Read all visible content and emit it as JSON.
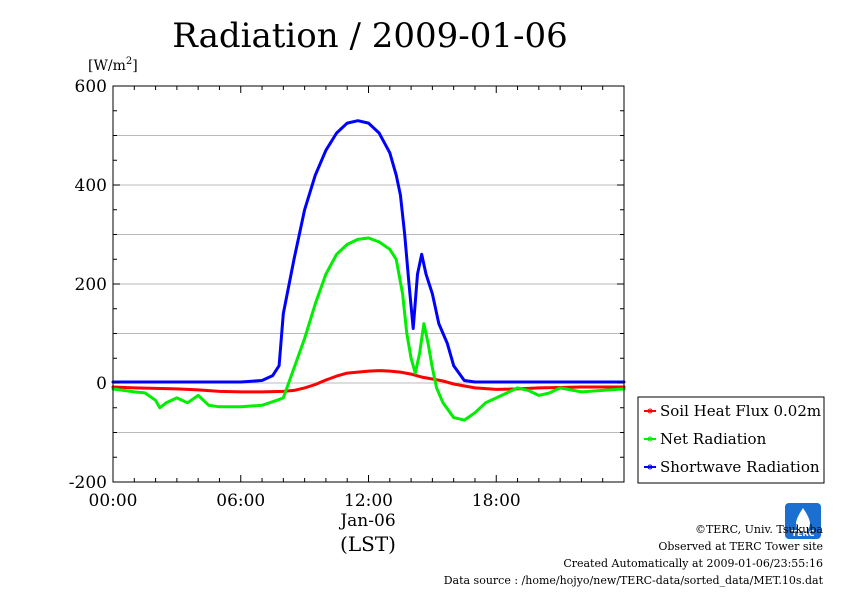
{
  "chart_data": {
    "type": "line",
    "title": "Radiation / 2009-01-06",
    "ylabel": "[W/m²]",
    "ylabel_base": "[W/m",
    "ylabel_sup": "2",
    "ylabel_close": "]",
    "xlabel": "(LST)",
    "x_date_label": "Jan-06",
    "x_unit": "hour of day",
    "xlim": [
      0,
      24
    ],
    "ylim": [
      -200,
      600
    ],
    "x_ticks": [
      {
        "value": 0,
        "label": "00:00"
      },
      {
        "value": 6,
        "label": "06:00"
      },
      {
        "value": 12,
        "label": "12:00"
      },
      {
        "value": 18,
        "label": "18:00"
      }
    ],
    "y_ticks": [
      {
        "value": -200,
        "label": "-200"
      },
      {
        "value": 0,
        "label": "0"
      },
      {
        "value": 200,
        "label": "200"
      },
      {
        "value": 400,
        "label": "400"
      },
      {
        "value": 600,
        "label": "600"
      }
    ],
    "grid": true,
    "legend_position": "right-bottom",
    "series": [
      {
        "name": "Soil Heat Flux 0.02m",
        "color": "#ff0000",
        "x": [
          0,
          1,
          2,
          3,
          4,
          5,
          6,
          7,
          8,
          8.5,
          9,
          9.5,
          10,
          10.5,
          11,
          12,
          12.5,
          13,
          13.5,
          14,
          14.5,
          15,
          15.5,
          16,
          17,
          18,
          19,
          20,
          21,
          22,
          23,
          24
        ],
        "y": [
          -8,
          -10,
          -11,
          -12,
          -14,
          -17,
          -18,
          -18,
          -17,
          -15,
          -10,
          -3,
          6,
          14,
          20,
          24,
          25,
          24,
          22,
          18,
          12,
          8,
          4,
          -2,
          -10,
          -13,
          -12,
          -10,
          -9,
          -8,
          -8,
          -8
        ]
      },
      {
        "name": "Net Radiation",
        "color": "#00ee00",
        "x": [
          0,
          0.5,
          1,
          1.5,
          2,
          2.2,
          2.5,
          3,
          3.5,
          4,
          4.5,
          5,
          6,
          7,
          7.7,
          8,
          8.5,
          9,
          9.5,
          10,
          10.5,
          11,
          11.5,
          12,
          12.5,
          13,
          13.3,
          13.6,
          13.8,
          14,
          14.2,
          14.4,
          14.6,
          14.8,
          15,
          15.2,
          15.5,
          16,
          16.5,
          17,
          17.5,
          18,
          18.5,
          19,
          19.5,
          20,
          20.5,
          21,
          22,
          23,
          24
        ],
        "y": [
          -12,
          -15,
          -18,
          -20,
          -35,
          -50,
          -40,
          -30,
          -40,
          -25,
          -45,
          -48,
          -48,
          -45,
          -35,
          -30,
          30,
          90,
          160,
          220,
          260,
          280,
          290,
          293,
          285,
          270,
          250,
          180,
          100,
          50,
          20,
          60,
          120,
          80,
          30,
          -10,
          -40,
          -70,
          -75,
          -60,
          -40,
          -30,
          -20,
          -10,
          -15,
          -25,
          -20,
          -10,
          -18,
          -15,
          -12
        ]
      },
      {
        "name": "Shortwave Radiation",
        "color": "#0000ff",
        "x": [
          0,
          1,
          2,
          3,
          4,
          5,
          6,
          7,
          7.5,
          7.8,
          8,
          8.5,
          9,
          9.5,
          10,
          10.5,
          11,
          11.5,
          12,
          12.5,
          13,
          13.3,
          13.5,
          13.7,
          13.9,
          14.1,
          14.3,
          14.5,
          14.7,
          15,
          15.3,
          15.7,
          16,
          16.5,
          17,
          18,
          19,
          20,
          21,
          22,
          23,
          24
        ],
        "y": [
          2,
          2,
          2,
          2,
          2,
          2,
          2,
          5,
          15,
          35,
          140,
          250,
          350,
          420,
          470,
          505,
          525,
          530,
          525,
          505,
          465,
          420,
          380,
          300,
          200,
          110,
          220,
          260,
          220,
          180,
          120,
          80,
          35,
          5,
          2,
          2,
          2,
          2,
          2,
          2,
          2,
          2
        ]
      }
    ]
  },
  "footer": {
    "copyright": "©TERC, Univ. Tsukuba",
    "site": "Observed at TERC Tower site",
    "created": "Created Automatically at 2009-01-06/23:55:16",
    "source": "Data source : /home/hojyo/new/TERC-data/sorted_data/MET.10s.dat",
    "logo_text": "TERC"
  }
}
